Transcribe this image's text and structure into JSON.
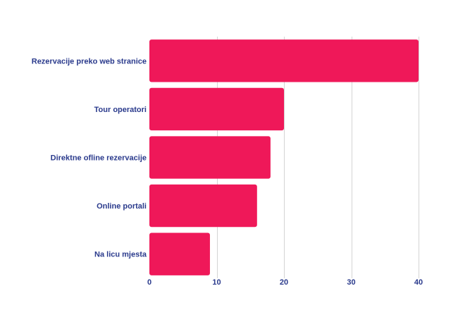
{
  "chart_data": {
    "type": "bar",
    "orientation": "horizontal",
    "categories": [
      "Rezervacije preko web stranice",
      "Tour operatori",
      "Direktne ofline rezervacije",
      "Online portali",
      "Na licu mjesta"
    ],
    "values": [
      40,
      20,
      18,
      16,
      9
    ],
    "title": "",
    "xlabel": "",
    "ylabel": "",
    "xlim": [
      0,
      40
    ],
    "xticks": [
      0,
      10,
      20,
      30,
      40
    ],
    "grid": "vertical",
    "legend": "none",
    "colors": {
      "bar": "#ef1859",
      "label": "#2a3a8c",
      "grid": "#d4d4d4"
    }
  }
}
